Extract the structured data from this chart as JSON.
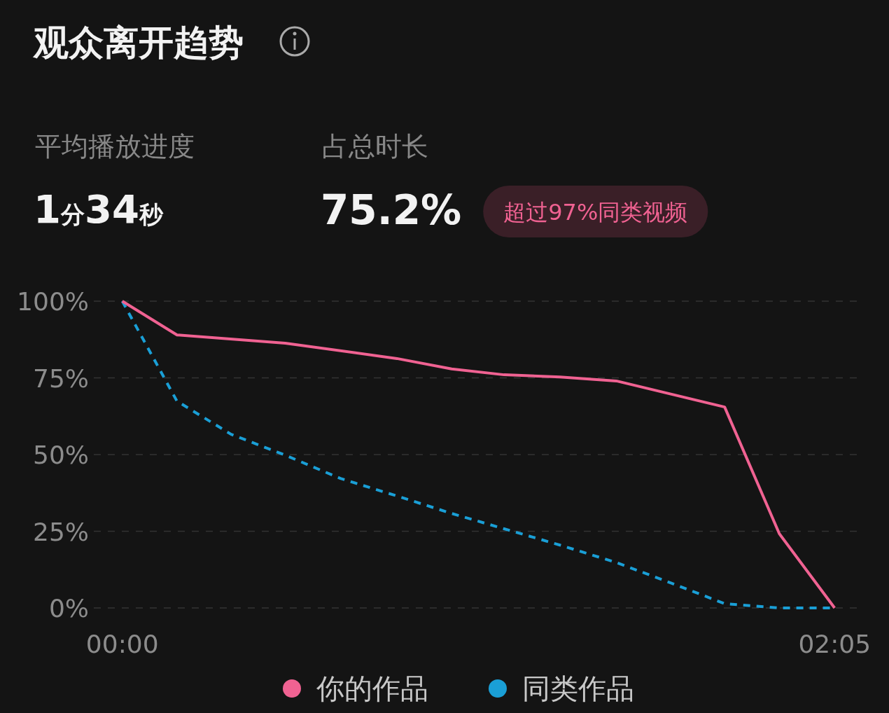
{
  "chart_data": {
    "type": "line",
    "title": "观众离开趋势",
    "annotations": [
      "平均播放进度",
      "1分34秒",
      "占总时长",
      "75.2%",
      "超过97%同类视频"
    ],
    "xlim": [
      -5,
      130
    ],
    "xticks": [
      {
        "value": 0,
        "label": "00:00"
      },
      {
        "value": 125,
        "label": "02:05"
      }
    ],
    "ylim": [
      0,
      100
    ],
    "yticks": [
      {
        "value": 0,
        "label": "0%"
      },
      {
        "value": 25,
        "label": "25%"
      },
      {
        "value": 50,
        "label": "50%"
      },
      {
        "value": 75,
        "label": "75%"
      },
      {
        "value": 100,
        "label": "100%"
      }
    ],
    "grid": "y",
    "legend": "bottom",
    "marker": "none",
    "series": [
      {
        "name": "你的作品",
        "color": "#f06292",
        "line_style": "solid",
        "x": [
          0,
          9.6,
          28.6,
          48.2,
          57.8,
          67,
          76.8,
          86.7,
          105.7,
          115.3,
          125
        ],
        "values": [
          100,
          89,
          86.3,
          81.3,
          77.9,
          76,
          75.3,
          74,
          65.5,
          24.2,
          0
        ]
      },
      {
        "name": "同类作品",
        "color": "#1a9fd6",
        "line_style": "dashed",
        "x": [
          0,
          9.6,
          19.1,
          28.6,
          38.3,
          48.2,
          57.8,
          67,
          76.8,
          86.7,
          96.2,
          105.7,
          115.3,
          125
        ],
        "values": [
          100,
          67.4,
          56.6,
          49.8,
          42.2,
          36.5,
          30.8,
          25.8,
          20.5,
          14.8,
          8.2,
          1.4,
          0,
          0
        ]
      }
    ]
  }
}
